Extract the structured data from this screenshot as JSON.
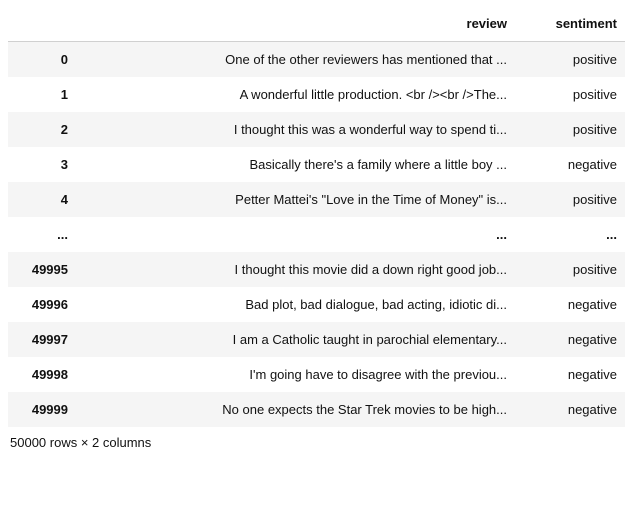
{
  "columns": {
    "index_header": "",
    "review": "review",
    "sentiment": "sentiment"
  },
  "ellipsis": "...",
  "rows_top": [
    {
      "index": "0",
      "review": "One of the other reviewers has mentioned that ...",
      "sentiment": "positive"
    },
    {
      "index": "1",
      "review": "A wonderful little production. <br /><br />The...",
      "sentiment": "positive"
    },
    {
      "index": "2",
      "review": "I thought this was a wonderful way to spend ti...",
      "sentiment": "positive"
    },
    {
      "index": "3",
      "review": "Basically there's a family where a little boy ...",
      "sentiment": "negative"
    },
    {
      "index": "4",
      "review": "Petter Mattei's \"Love in the Time of Money\" is...",
      "sentiment": "positive"
    }
  ],
  "rows_bottom": [
    {
      "index": "49995",
      "review": "I thought this movie did a down right good job...",
      "sentiment": "positive"
    },
    {
      "index": "49996",
      "review": "Bad plot, bad dialogue, bad acting, idiotic di...",
      "sentiment": "negative"
    },
    {
      "index": "49997",
      "review": "I am a Catholic taught in parochial elementary...",
      "sentiment": "negative"
    },
    {
      "index": "49998",
      "review": "I'm going have to disagree with the previou...",
      "sentiment": "negative"
    },
    {
      "index": "49999",
      "review": "No one expects the Star Trek movies to be high...",
      "sentiment": "negative"
    }
  ],
  "footer": "50000 rows × 2 columns"
}
